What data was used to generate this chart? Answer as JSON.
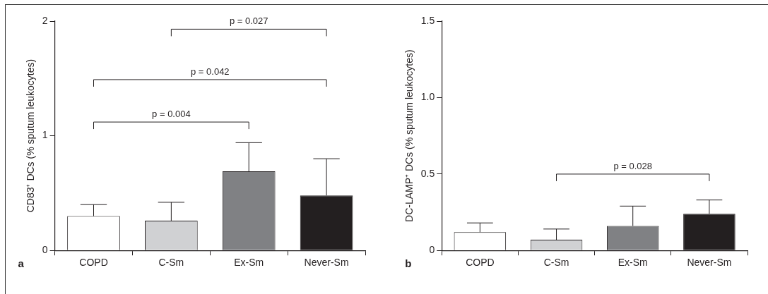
{
  "chart_data": [
    {
      "type": "bar",
      "categories": [
        "COPD",
        "C-Sm",
        "Ex-Sm",
        "Never-Sm"
      ],
      "values": [
        0.3,
        0.26,
        0.69,
        0.48
      ],
      "colors": [
        "#ffffff",
        "#d0d1d3",
        "#808184",
        "#231f20"
      ],
      "errors": [
        [
          0.3,
          0.4
        ],
        [
          0.26,
          0.42
        ],
        [
          0.69,
          0.94
        ],
        [
          0.48,
          0.8
        ]
      ],
      "ylabel": "CD83⁺ DCs (% sputum leukocytes)",
      "ylim": [
        0,
        2
      ],
      "yticks": [
        0,
        1,
        2
      ],
      "grid": false,
      "legend": false,
      "annotations": [
        "p = 0.027",
        "p = 0.042",
        "p = 0.004",
        "a"
      ]
    },
    {
      "type": "bar",
      "categories": [
        "COPD",
        "C-Sm",
        "Ex-Sm",
        "Never-Sm"
      ],
      "values": [
        0.12,
        0.07,
        0.16,
        0.24
      ],
      "colors": [
        "#ffffff",
        "#d0d1d3",
        "#808184",
        "#231f20"
      ],
      "errors": [
        [
          0.12,
          0.18
        ],
        [
          0.07,
          0.14
        ],
        [
          0.16,
          0.29
        ],
        [
          0.24,
          0.33
        ]
      ],
      "ylabel": "DC-LAMP⁺ DCs (% sputum leukocytes)",
      "ylim": [
        0,
        1.5
      ],
      "yticks": [
        0,
        0.5,
        {
          "value": 1,
          "label": "1.0"
        },
        1.5
      ],
      "grid": false,
      "legend": false,
      "annotations": [
        "p = 0.028",
        "b"
      ]
    }
  ]
}
